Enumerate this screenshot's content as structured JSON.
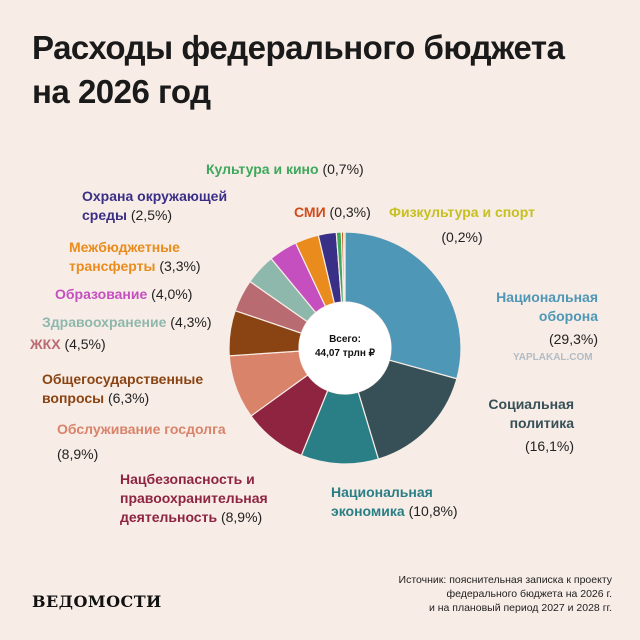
{
  "title_line1": "Расходы федерального бюджета",
  "title_line2": "на 2026 год",
  "center_line1": "Всего:",
  "center_line2": "44,07 трлн ₽",
  "source": [
    "Источник: пояснительная записка к проекту",
    "федерального бюджета на 2026 г.",
    "и на плановый период 2027 и 2028 гг."
  ],
  "logo": "ВЕДОМОСТИ",
  "watermark": "YAPLAKAL.COM",
  "chart_data": {
    "type": "pie",
    "title": "Расходы федерального бюджета на 2026 год",
    "total": "44,07 трлн ₽",
    "slices": [
      {
        "name": "Национальная оборона",
        "value": 29.3,
        "label": "(29,3%)",
        "color": "#4f97b6"
      },
      {
        "name": "Социальная политика",
        "value": 16.1,
        "label": "(16,1%)",
        "color": "#375057"
      },
      {
        "name": "Национальная экономика",
        "value": 10.8,
        "label": "(10,8%)",
        "color": "#2a7f86"
      },
      {
        "name": "Нацбезопасность и правоохранительная деятельность",
        "value": 8.9,
        "label": "(8,9%)",
        "color": "#8e2440"
      },
      {
        "name": "Обслуживание госдолга",
        "value": 8.9,
        "label": "(8,9%)",
        "color": "#d9836a"
      },
      {
        "name": "Общегосударственные вопросы",
        "value": 6.3,
        "label": "(6,3%)",
        "color": "#8a4413"
      },
      {
        "name": "ЖКХ",
        "value": 4.5,
        "label": "(4,5%)",
        "color": "#b86b70"
      },
      {
        "name": "Здравоохранение",
        "value": 4.3,
        "label": "(4,3%)",
        "color": "#8fb8ad"
      },
      {
        "name": "Образование",
        "value": 4.0,
        "label": "(4,0%)",
        "color": "#c54fbf"
      },
      {
        "name": "Межбюджетные трансферты",
        "value": 3.3,
        "label": "(3,3%)",
        "color": "#ea8c1d"
      },
      {
        "name": "Охрана окружающей среды",
        "value": 2.5,
        "label": "(2,5%)",
        "color": "#3a2f86"
      },
      {
        "name": "Культура и кино",
        "value": 0.7,
        "label": "(0,7%)",
        "color": "#3ea85c"
      },
      {
        "name": "СМИ",
        "value": 0.3,
        "label": "(0,3%)",
        "color": "#d24b1b"
      },
      {
        "name": "Физкультура и спорт",
        "value": 0.2,
        "label": "(0,2%)",
        "color": "#cfd12a"
      }
    ]
  }
}
